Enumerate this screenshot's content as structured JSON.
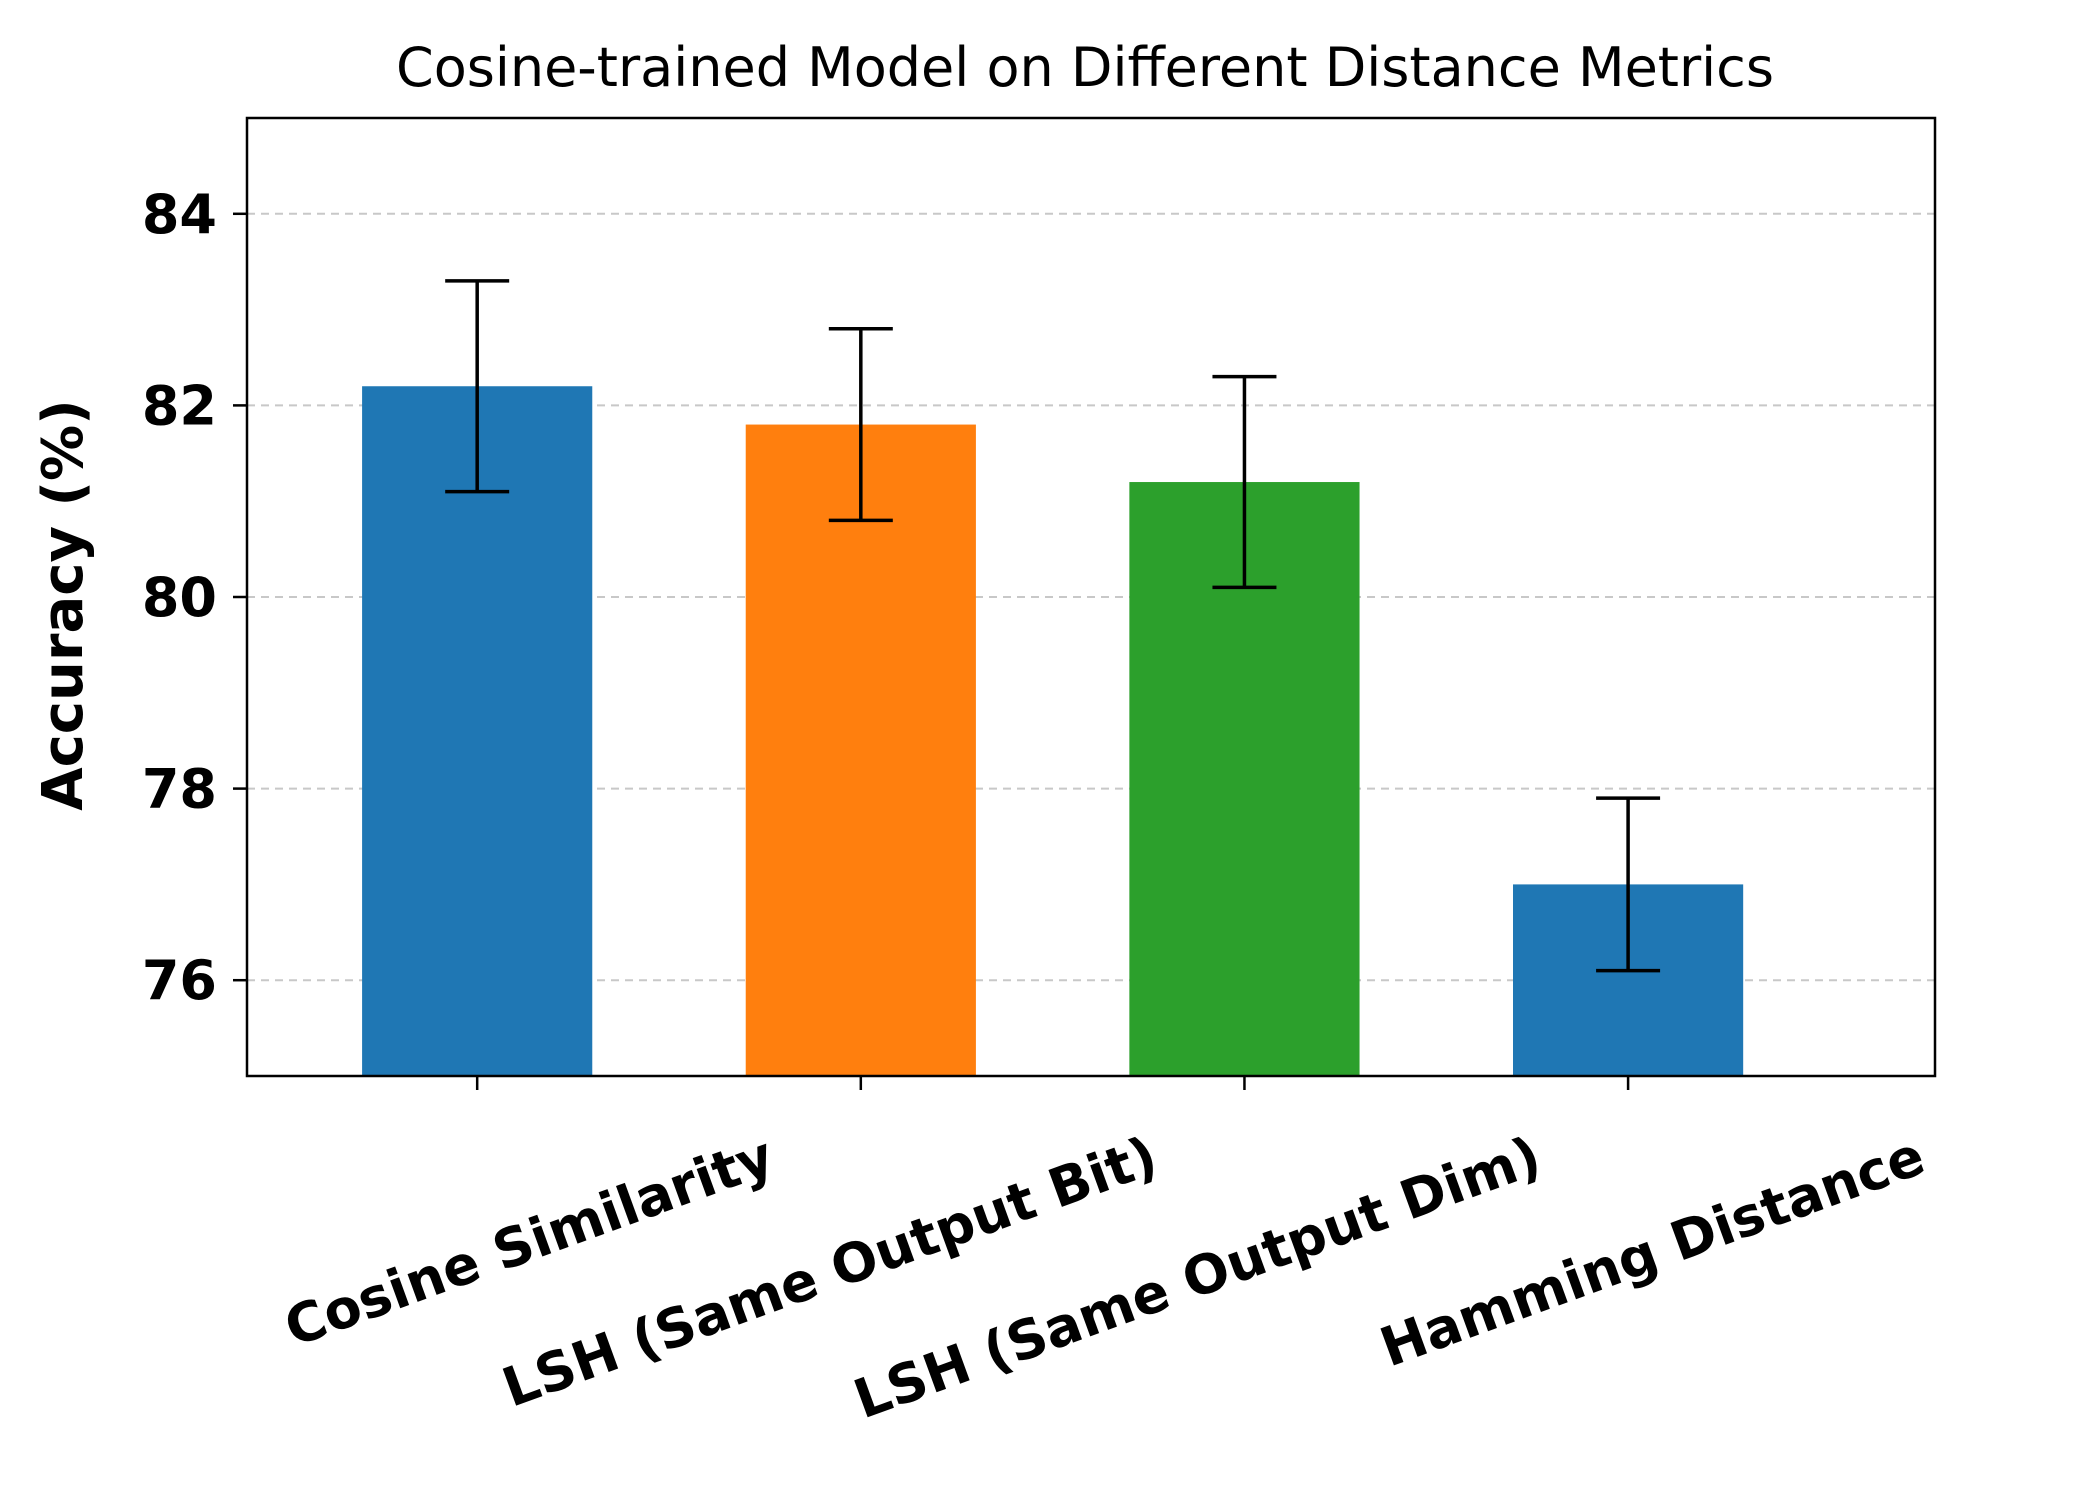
{
  "chart_data": {
    "type": "bar",
    "title": "Cosine-trained Model on Different Distance Metrics",
    "xlabel": "",
    "ylabel": "Accuracy (%)",
    "categories": [
      "Cosine Similarity",
      "LSH (Same Output Bit)",
      "LSH (Same Output Dim)",
      "Hamming Distance"
    ],
    "values": [
      82.2,
      81.8,
      81.2,
      77.0
    ],
    "error_low": [
      81.1,
      80.8,
      80.1,
      76.1
    ],
    "error_high": [
      83.3,
      82.8,
      82.3,
      77.9
    ],
    "colors": [
      "#1f77b4",
      "#ff7f0e",
      "#2ca02c",
      "#1f77b4"
    ],
    "ylim": [
      75,
      85
    ],
    "yticks": [
      76,
      78,
      80,
      82,
      84
    ],
    "grid": "y, dashed",
    "legend": "none"
  }
}
